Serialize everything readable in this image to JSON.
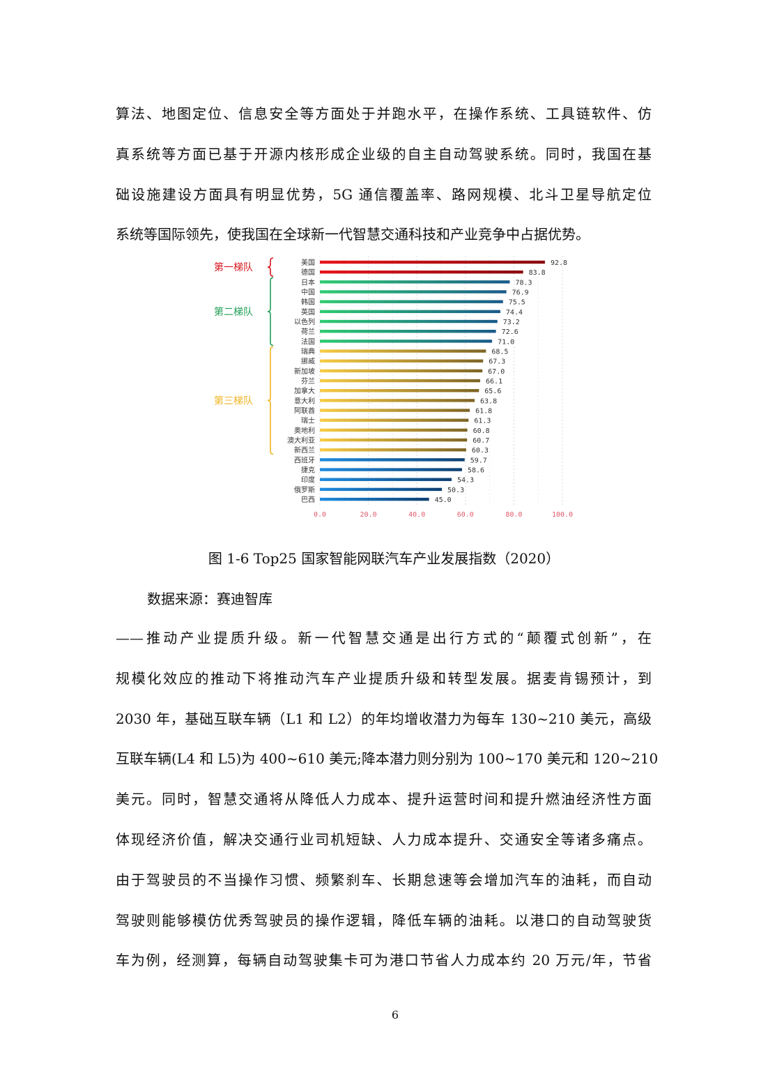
{
  "paragraph_top": [
    "算法、地图定位、信息安全等方面处于并跑水平，在操作系统、工具链软件、仿",
    "真系统等方面已基于开源内核形成企业级的自主自动驾驶系统。同时，我国在基",
    "础设施建设方面具有明显优势，5G 通信覆盖率、路网规模、北斗卫星导航定位",
    "系统等国际领先，使我国在全球新一代智慧交通科技和产业竞争中占据优势。"
  ],
  "figure_caption": "图 1-6 Top25 国家智能网联汽车产业发展指数（2020）",
  "data_source": "数据来源：赛迪智库",
  "paragraph_bottom": [
    "——推动产业提质升级。新一代智慧交通是出行方式的“颠覆式创新”，在",
    "规模化效应的推动下将推动汽车产业提质升级和转型发展。据麦肯锡预计，到",
    "2030 年，基础互联车辆（L1 和 L2）的年均增收潜力为每车 130~210 美元，高级",
    "互联车辆(L4 和 L5)为 400~610 美元;降本潜力则分别为 100~170 美元和 120~210",
    "美元。同时，智慧交通将从降低人力成本、提升运营时间和提升燃油经济性方面",
    "体现经济价值，解决交通行业司机短缺、人力成本提升、交通安全等诸多痛点。",
    "由于驾驶员的不当操作习惯、频繁刹车、长期怠速等会增加汽车的油耗，而自动",
    "驾驶则能够模仿优秀驾驶员的操作逻辑，降低车辆的油耗。以港口的自动驾驶货",
    "车为例，经测算，每辆自动驾驶集卡可为港口节省人力成本约 20 万元/年，节省"
  ],
  "page_number": "6",
  "chart_data": {
    "type": "bar",
    "orientation": "horizontal",
    "categories": [
      "美国",
      "德国",
      "日本",
      "中国",
      "韩国",
      "英国",
      "以色列",
      "荷兰",
      "法国",
      "瑞典",
      "挪威",
      "新加坡",
      "芬兰",
      "加拿大",
      "意大利",
      "阿联酋",
      "瑞士",
      "奥地利",
      "澳大利亚",
      "新西兰",
      "西班牙",
      "捷克",
      "印度",
      "俄罗斯",
      "巴西"
    ],
    "values": [
      92.8,
      83.8,
      78.3,
      76.9,
      75.5,
      74.4,
      73.2,
      72.6,
      71.0,
      68.5,
      67.3,
      67.0,
      66.1,
      65.6,
      63.8,
      61.8,
      61.3,
      60.8,
      60.7,
      60.3,
      59.7,
      58.6,
      54.3,
      50.3,
      45.0
    ],
    "value_labels": [
      "92.8",
      "83.8",
      "78.3",
      "76.9",
      "75.5",
      "74.4",
      "73.2",
      "72.6",
      "71.0",
      "68.5",
      "67.3",
      "67.0",
      "66.1",
      "65.6",
      "63.8",
      "61.8",
      "61.3",
      "60.8",
      "60.7",
      "60.3",
      "59.7",
      "58.6",
      "54.3",
      "50.3",
      "45.0"
    ],
    "xlim": [
      0,
      100
    ],
    "xticks": [
      "0.0",
      "20.0",
      "40.0",
      "60.0",
      "80.0",
      "100.0"
    ],
    "grid": true,
    "tiers": [
      {
        "label": "第一梯队",
        "from": 0,
        "to": 1,
        "color": "#d9141c"
      },
      {
        "label": "第二梯队",
        "from": 2,
        "to": 8,
        "color": "#1fa055"
      },
      {
        "label": "第三梯队",
        "from": 9,
        "to": 19,
        "color": "#f0b323"
      }
    ],
    "bar_colors": {
      "tier1": [
        "#e8141c",
        "#8a0c10"
      ],
      "tier2": [
        "#2ecc71",
        "#1a5a8a"
      ],
      "tier3": [
        "#f8cc45",
        "#7d6425"
      ],
      "other": [
        "#1e8ce0",
        "#0d3f70"
      ]
    },
    "tick_color": "#e05a6a"
  }
}
